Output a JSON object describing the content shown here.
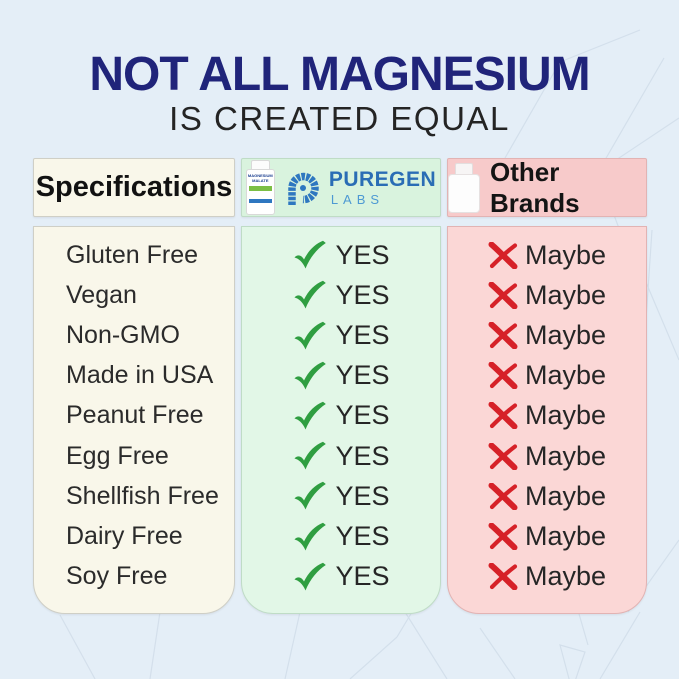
{
  "title": "NOT ALL MAGNESIUM",
  "subtitle": "IS CREATED EQUAL",
  "table": {
    "spec_header": "Specifications",
    "rows": [
      "Gluten Free",
      "Vegan",
      "Non-GMO",
      "Made in USA",
      "Peanut Free",
      "Egg Free",
      "Shellfish Free",
      "Dairy Free",
      "Soy Free"
    ],
    "puregen": {
      "brand_name": "PUREGEN",
      "brand_suffix": "LABS",
      "bottle_label_line1": "MAGNESIUM",
      "bottle_label_line2": "MALATE",
      "answer": "YES"
    },
    "other_brands": {
      "header": "Other Brands",
      "answer": "Maybe"
    }
  },
  "chart_data": {
    "type": "table",
    "title": "NOT ALL MAGNESIUM IS CREATED EQUAL",
    "columns": [
      "Specifications",
      "Puregen Labs",
      "Other Brands"
    ],
    "rows": [
      [
        "Gluten Free",
        "YES",
        "Maybe"
      ],
      [
        "Vegan",
        "YES",
        "Maybe"
      ],
      [
        "Non-GMO",
        "YES",
        "Maybe"
      ],
      [
        "Made in USA",
        "YES",
        "Maybe"
      ],
      [
        "Peanut Free",
        "YES",
        "Maybe"
      ],
      [
        "Egg Free",
        "YES",
        "Maybe"
      ],
      [
        "Shellfish Free",
        "YES",
        "Maybe"
      ],
      [
        "Dairy Free",
        "YES",
        "Maybe"
      ],
      [
        "Soy Free",
        "YES",
        "Maybe"
      ]
    ]
  },
  "colors": {
    "background": "#e4eef7",
    "title_navy": "#20247a",
    "check_green": "#2f9e41",
    "cross_red": "#d62128",
    "spec_bg": "#f9f7ea",
    "puregen_header_bg": "#d9f3de",
    "puregen_body_bg": "#e2f7e7",
    "other_header_bg": "#f7caca",
    "other_body_bg": "#fbd7d6",
    "brand_blue": "#2a6db5"
  },
  "icons": {
    "yes": "check-icon",
    "no": "cross-icon",
    "brand": "puregen-logo-icon",
    "product": "bottle-icon"
  }
}
